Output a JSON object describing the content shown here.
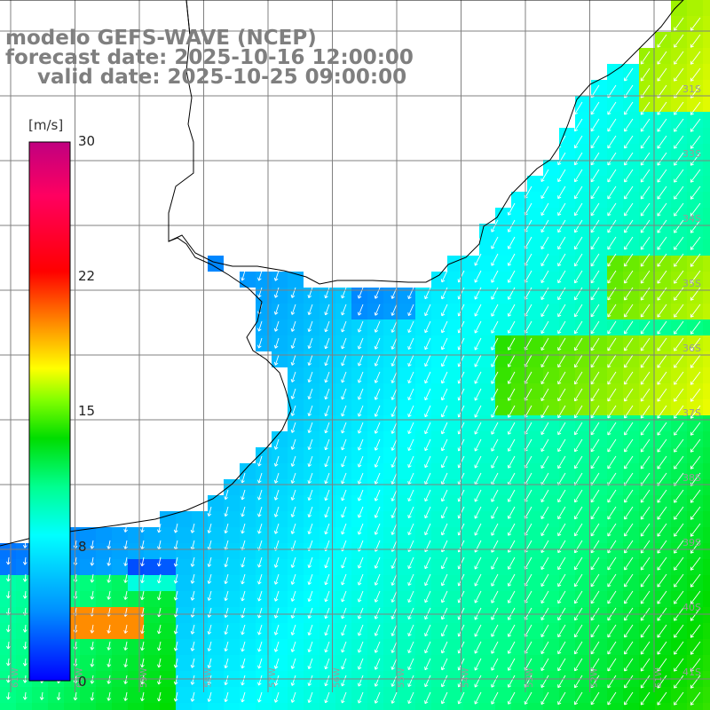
{
  "title": {
    "line1": "modelo GEFS-WAVE (NCEP)",
    "line2": "forecast date: 2025-10-16 12:00:00",
    "line3": "valid date: 2025-10-25 09:00:00"
  },
  "colorbar": {
    "unit": "[m/s]",
    "min": 0,
    "max": 30,
    "tick_labels": [
      "30",
      "22",
      "15",
      "8",
      "0"
    ],
    "tick_values": [
      30,
      22,
      15,
      8,
      0
    ],
    "colors": [
      "#0000ff",
      "#0080ff",
      "#00ffff",
      "#00ff80",
      "#00cc00",
      "#80ff00",
      "#ffff00",
      "#ff8000",
      "#ff0000",
      "#ff0080",
      "#c80080"
    ]
  },
  "map": {
    "field": "wind speed and direction",
    "lat_labels": [
      "31S",
      "33S",
      "34S",
      "35S",
      "36S",
      "37S",
      "38S",
      "39S",
      "40S",
      "41S"
    ],
    "lon_labels": [
      "61W",
      "60W",
      "59W",
      "58W",
      "57W",
      "56W",
      "55W",
      "54W",
      "53W",
      "52W",
      "51W"
    ],
    "ocean_color": "#20c0ff",
    "land_color": "#ffffff",
    "grid_color": "#808080",
    "arrow_color": "#ffffff",
    "coast_color": "#000000"
  }
}
